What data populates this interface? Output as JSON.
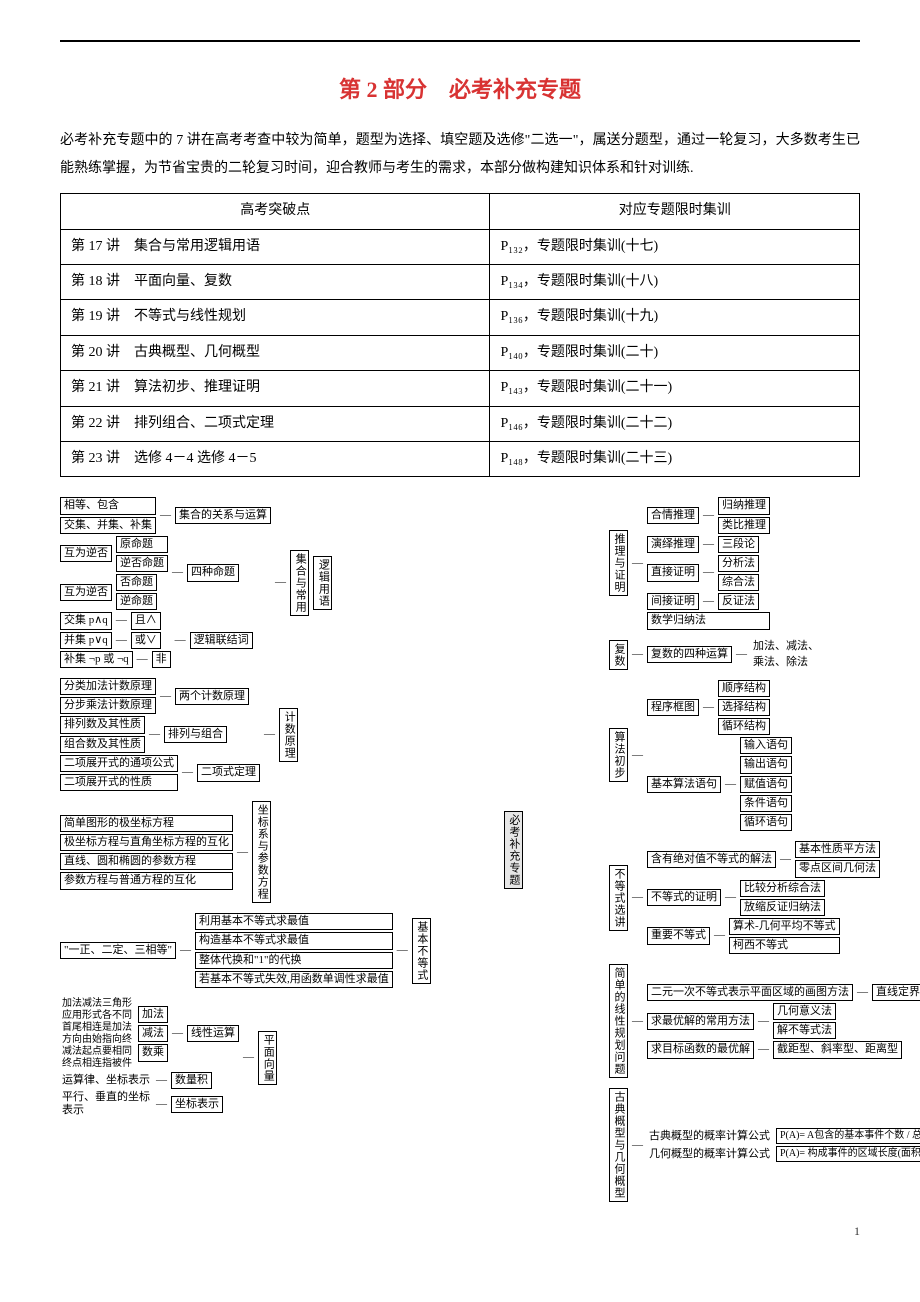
{
  "title": "第 2 部分　必考补充专题",
  "intro": "必考补充专题中的 7 讲在高考考查中较为简单，题型为选择、填空题及选修\"二选一\"，属送分题型，通过一轮复习，大多数考生已能熟练掌握，为节省宝贵的二轮复习时间，迎合教师与考生的需求，本部分做构建知识体系和针对训练.",
  "table": {
    "headers": [
      "高考突破点",
      "对应专题限时集训"
    ],
    "rows": [
      [
        "第 17 讲　集合与常用逻辑用语",
        "P₁₃₂，专题限时集训(十七)"
      ],
      [
        "第 18 讲　平面向量、复数",
        "P₁₃₄，专题限时集训(十八)"
      ],
      [
        "第 19 讲　不等式与线性规划",
        "P₁₃₆，专题限时集训(十九)"
      ],
      [
        "第 20 讲　古典概型、几何概型",
        "P₁₄₀，专题限时集训(二十)"
      ],
      [
        "第 21 讲　算法初步、推理证明",
        "P₁₄₃，专题限时集训(二十一)"
      ],
      [
        "第 22 讲　排列组合、二项式定理",
        "P₁₄₆，专题限时集训(二十二)"
      ],
      [
        "第 23 讲　选修 4－4 选修 4－5",
        "P₁₄₈，专题限时集训(二十三)"
      ]
    ]
  },
  "center_label": "必考补充专题",
  "left": {
    "logic": {
      "root": "逻辑用语",
      "sub": "集合与常用",
      "sets": {
        "label": "集合的关系与运算",
        "items": [
          "相等、包含",
          "交集、并集、补集"
        ]
      },
      "four": {
        "label": "四种命题",
        "pairs": [
          "互为逆否",
          "互为逆否"
        ],
        "items": [
          "原命题",
          "逆否命题",
          "否命题",
          "逆命题"
        ]
      },
      "conn": {
        "label": "逻辑联结词",
        "items": [
          "交集 p∧q",
          "并集 p∨q",
          "补集 ¬p 或 ¬q"
        ],
        "ops": [
          "且∧",
          "或∨",
          "非"
        ]
      }
    },
    "count": {
      "root": "计数原理",
      "princ": {
        "label": "两个计数原理",
        "items": [
          "分类加法计数原理",
          "分步乘法计数原理"
        ]
      },
      "perm": {
        "label": "排列与组合",
        "items": [
          "排列数及其性质",
          "组合数及其性质"
        ]
      },
      "binom": {
        "label": "二项式定理",
        "items": [
          "二项展开式的通项公式",
          "二项展开式的性质"
        ]
      }
    },
    "coord": {
      "root": "坐标系与参数方程",
      "items": [
        "简单图形的极坐标方程",
        "极坐标方程与直角坐标方程的互化",
        "直线、圆和椭圆的参数方程",
        "参数方程与普通方程的互化"
      ]
    },
    "ineq": {
      "root": "基本不等式",
      "note": "\"一正、二定、三相等\"",
      "items": [
        "利用基本不等式求最值",
        "构造基本不等式求最值",
        "整体代换和\"1\"的代换",
        "若基本不等式失效,用函数单调性求最值"
      ]
    },
    "vec": {
      "root": "平面向量",
      "lin": {
        "label": "线性运算",
        "items": [
          "加法",
          "减法",
          "数乘"
        ],
        "note": "加法减法三角形\n应用形式各不同\n首尾相连是加法\n方向由始指向终\n减法起点要相同\n终点相连指被件"
      },
      "dot": {
        "label": "数量积",
        "note": "运算律、坐标表示"
      },
      "coord": {
        "label": "坐标表示",
        "note": "平行、垂直的坐标\n表示"
      }
    }
  },
  "right": {
    "reason": {
      "root": "推理与证明",
      "r1": {
        "label": "合情推理",
        "items": [
          "归纳推理",
          "类比推理"
        ]
      },
      "r2": {
        "label": "演绎推理",
        "items": [
          "三段论"
        ]
      },
      "r3": {
        "label": "直接证明",
        "items": [
          "分析法",
          "综合法"
        ]
      },
      "r4": {
        "label": "间接证明",
        "items": [
          "反证法"
        ]
      },
      "r5": "数学归纳法"
    },
    "complex": {
      "root": "复数",
      "label": "复数的四种运算",
      "items": [
        "加法、减法、",
        "乘法、除法"
      ]
    },
    "algo": {
      "root": "算法初步",
      "flow": {
        "label": "程序框图",
        "items": [
          "顺序结构",
          "选择结构",
          "循环结构"
        ]
      },
      "stmt": {
        "label": "基本算法语句",
        "items": [
          "输入语句",
          "输出语句",
          "赋值语句",
          "条件语句",
          "循环语句"
        ]
      }
    },
    "ineqsel": {
      "root": "不等式选讲",
      "abs": {
        "label": "含有绝对值不等式的解法",
        "items": [
          "基本性质平方法",
          "零点区间几何法"
        ]
      },
      "prf": {
        "label": "不等式的证明",
        "items": [
          "比较分析综合法",
          "放缩反证归纳法"
        ]
      },
      "imp": {
        "label": "重要不等式",
        "items": [
          "算术-几何平均不等式",
          "柯西不等式"
        ]
      }
    },
    "linprog": {
      "root": "简单的线性规划问题",
      "reg": {
        "label": "二元一次不等式表示平面区域的画图方法",
        "items": [
          "直线定界,特殊点定域"
        ]
      },
      "opt": {
        "label": "求最优解的常用方法",
        "items": [
          "几何意义法",
          "解不等式法"
        ]
      },
      "tgt": {
        "label": "求目标函数的最优解",
        "items": [
          "截距型、斜率型、距离型"
        ]
      }
    },
    "prob": {
      "root": "古典概型与几何概型",
      "cl": {
        "label": "古典概型的概率计算公式",
        "formula": "P(A)= A包含的基本事件个数 / 总的基本事件个数"
      },
      "geo": {
        "label": "几何概型的概率计算公式",
        "formula": "P(A)= 构成事件的区域长度(面积或体积) / 试验的全部结果构成的区域长度"
      }
    }
  },
  "pagenum": "1"
}
